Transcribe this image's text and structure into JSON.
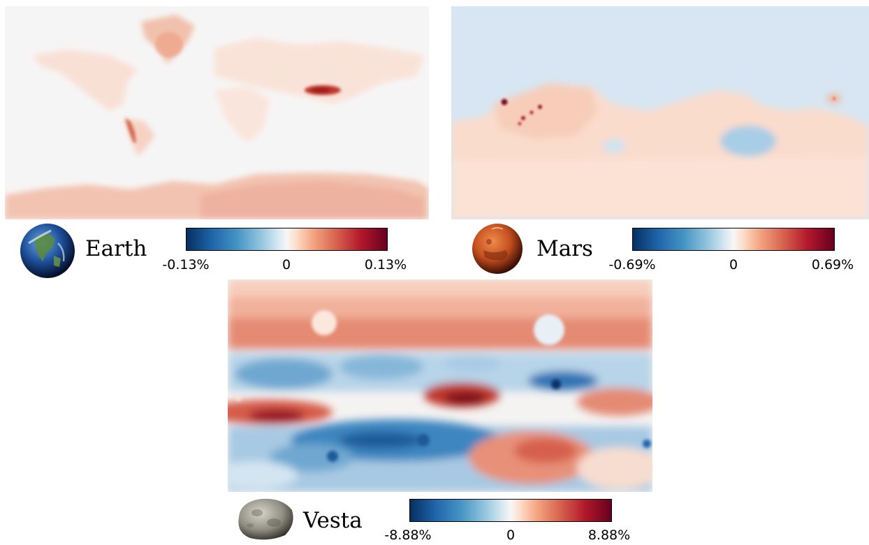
{
  "panels": [
    {
      "name": "Earth",
      "colorbar": {
        "min_label": "-0.13%",
        "mid_label": "0",
        "max_label": "0.13%"
      }
    },
    {
      "name": "Mars",
      "colorbar": {
        "min_label": "-0.69%",
        "mid_label": "0",
        "max_label": "0.69%"
      }
    },
    {
      "name": "Vesta",
      "colorbar": {
        "min_label": "-8.88%",
        "mid_label": "0",
        "max_label": "8.88%"
      }
    }
  ],
  "colormap": {
    "name": "RdBu_r",
    "low_color": "#053061",
    "mid_color": "#f7f7f7",
    "high_color": "#67001f"
  }
}
